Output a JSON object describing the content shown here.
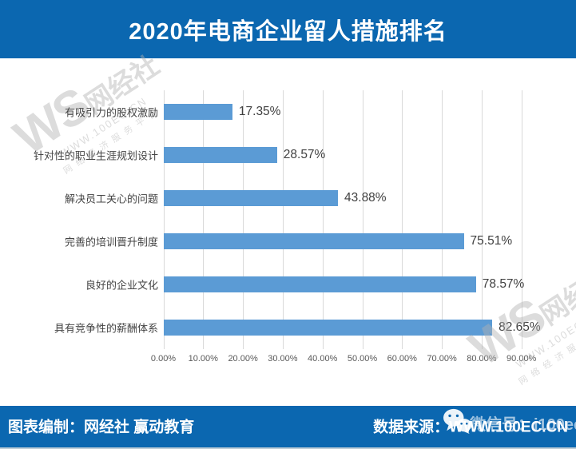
{
  "title": "2020年电商企业留人措施排名",
  "footer": {
    "credit": "图表编制：网经社  赢动教育",
    "source": "数据来源：WWW.100EC.CN",
    "wechat_watermark": "微信号：i100ec"
  },
  "brand_watermark": {
    "ws": "WS",
    "brand": "网经社",
    "url": "WWW.100EC.CN",
    "tagline": "网络经济服务平台"
  },
  "colors": {
    "header_bg": "#0B67B0",
    "bar": "#5B9BD5",
    "grid_line": "#D9D9D9",
    "tick_text": "#595959",
    "category_text": "#444444",
    "value_text": "#404040"
  },
  "chart_data": {
    "type": "bar",
    "orientation": "horizontal",
    "title": "2020年电商企业留人措施排名",
    "categories": [
      "有吸引力的股权激励",
      "针对性的职业生涯规划设计",
      "解决员工关心的问题",
      "完善的培训晋升制度",
      "良好的企业文化",
      "具有竞争性的薪酬体系"
    ],
    "values": [
      17.35,
      28.57,
      43.88,
      75.51,
      78.57,
      82.65
    ],
    "value_labels": [
      "17.35%",
      "28.57%",
      "43.88%",
      "75.51%",
      "78.57%",
      "82.65%"
    ],
    "x_ticks": [
      "0.00%",
      "10.00%",
      "20.00%",
      "30.00%",
      "40.00%",
      "50.00%",
      "60.00%",
      "70.00%",
      "80.00%",
      "90.00%"
    ],
    "xlim": [
      0,
      90
    ],
    "grid": true,
    "legend": false
  }
}
